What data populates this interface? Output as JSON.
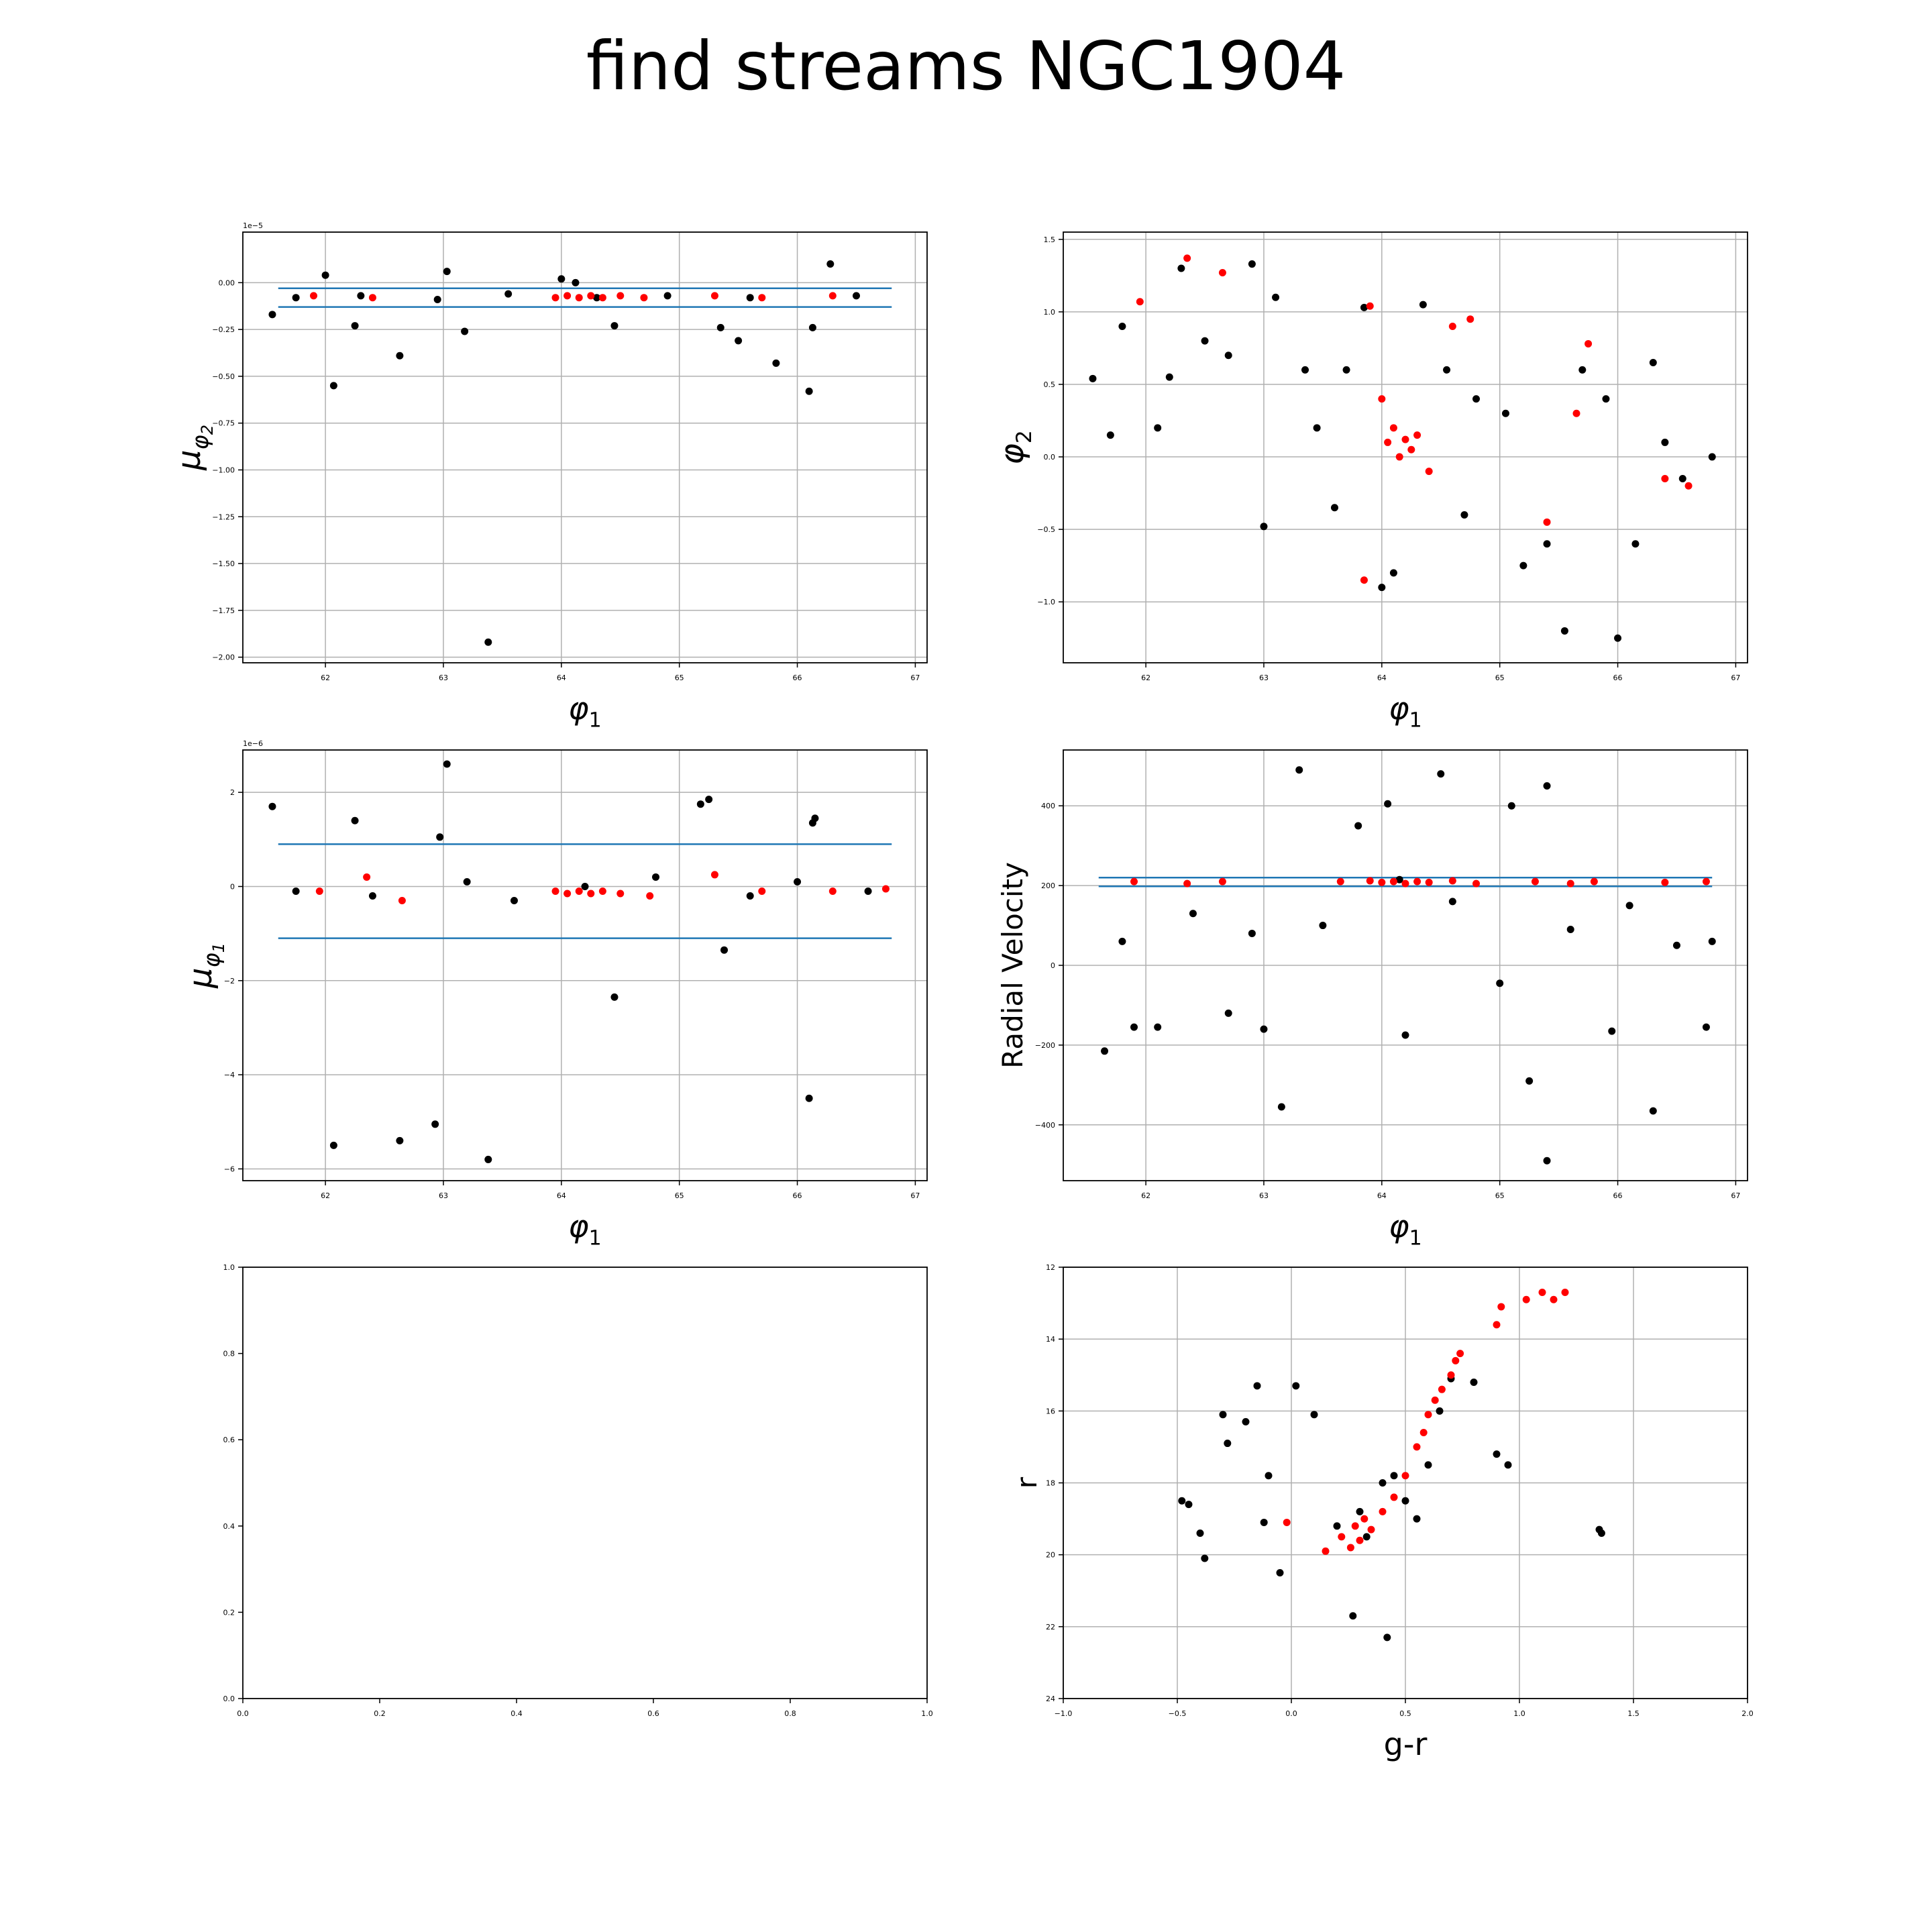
{
  "figure": {
    "title": "find streams NGC1904"
  },
  "colors": {
    "member": "#ff0000",
    "field": "#000000",
    "cut_line": "#1f77b4",
    "grid": "#b0b0b0"
  },
  "chart_data": [
    {
      "id": "pm2",
      "type": "scatter",
      "title": "",
      "xlabel": "φ1",
      "ylabel": "μφ2",
      "offset_text": "1e−5",
      "xlim": [
        61.3,
        67.1
      ],
      "ylim": [
        -2.03,
        0.27
      ],
      "xticks": [
        62,
        63,
        64,
        65,
        66,
        67
      ],
      "xtick_labels": [
        "62",
        "63",
        "64",
        "65",
        "66",
        "67"
      ],
      "yticks": [
        0.0,
        -0.25,
        -0.5,
        -0.75,
        -1.0,
        -1.25,
        -1.5,
        -1.75,
        -2.0
      ],
      "ytick_labels": [
        "0.00",
        "−0.25",
        "−0.50",
        "−0.75",
        "−1.00",
        "−1.25",
        "−1.50",
        "−1.75",
        "−2.00"
      ],
      "grid": true,
      "hlines": [
        -0.03,
        -0.13
      ],
      "hline_range": [
        61.6,
        66.8
      ],
      "series": [
        {
          "role": "field",
          "x": [
            61.55,
            62.0,
            62.07,
            62.25,
            62.63,
            63.03,
            63.18,
            63.38,
            64.0,
            64.12,
            64.45,
            65.35,
            65.5,
            65.82,
            66.1,
            66.13,
            66.28,
            61.75,
            62.3,
            62.95,
            63.55,
            64.3,
            64.9,
            65.6,
            66.5
          ],
          "y": [
            -0.17,
            0.04,
            -0.55,
            -0.23,
            -0.39,
            0.06,
            -0.26,
            -1.92,
            0.02,
            0.0,
            -0.23,
            -0.24,
            -0.31,
            -0.43,
            -0.58,
            -0.24,
            0.1,
            -0.08,
            -0.07,
            -0.09,
            -0.06,
            -0.08,
            -0.07,
            -0.08,
            -0.07
          ]
        },
        {
          "role": "member",
          "x": [
            61.9,
            62.4,
            63.95,
            64.05,
            64.15,
            64.25,
            64.35,
            64.5,
            64.7,
            65.3,
            65.7,
            66.3
          ],
          "y": [
            -0.07,
            -0.08,
            -0.08,
            -0.07,
            -0.08,
            -0.07,
            -0.08,
            -0.07,
            -0.08,
            -0.07,
            -0.08,
            -0.07
          ]
        }
      ]
    },
    {
      "id": "sky",
      "type": "scatter",
      "title": "",
      "xlabel": "φ1",
      "ylabel": "φ2",
      "xlim": [
        61.3,
        67.1
      ],
      "ylim": [
        -1.42,
        1.55
      ],
      "xticks": [
        62,
        63,
        64,
        65,
        66,
        67
      ],
      "xtick_labels": [
        "62",
        "63",
        "64",
        "65",
        "66",
        "67"
      ],
      "yticks": [
        1.5,
        1.0,
        0.5,
        0.0,
        -0.5,
        -1.0
      ],
      "ytick_labels": [
        "1.5",
        "1.0",
        "0.5",
        "0.0",
        "−0.5",
        "−1.0"
      ],
      "grid": true,
      "hlines": [],
      "series": [
        {
          "role": "field",
          "x": [
            61.55,
            61.8,
            62.1,
            62.3,
            62.5,
            62.9,
            63.0,
            63.35,
            63.6,
            63.7,
            63.85,
            64.0,
            64.35,
            64.55,
            64.8,
            65.05,
            65.4,
            65.7,
            66.0,
            66.3,
            66.55,
            66.8,
            62.2,
            62.7,
            63.1,
            64.1,
            65.2,
            65.9,
            66.4,
            61.7,
            63.45,
            64.7,
            65.55,
            66.15
          ],
          "y": [
            0.54,
            0.9,
            0.2,
            1.3,
            0.8,
            1.33,
            -0.48,
            0.6,
            -0.35,
            0.6,
            1.03,
            -0.9,
            1.05,
            0.6,
            0.4,
            0.3,
            -0.6,
            0.6,
            -1.25,
            0.65,
            -0.15,
            0.0,
            0.55,
            0.7,
            1.1,
            -0.8,
            -0.75,
            0.4,
            0.1,
            0.15,
            0.2,
            -0.4,
            -1.2,
            -0.6
          ]
        },
        {
          "role": "member",
          "x": [
            61.95,
            62.35,
            62.65,
            63.9,
            64.05,
            64.1,
            64.15,
            64.2,
            64.25,
            64.3,
            64.4,
            64.6,
            64.75,
            65.4,
            65.75,
            65.65,
            66.4,
            66.6,
            63.85,
            64.0
          ],
          "y": [
            1.07,
            1.37,
            1.27,
            1.04,
            0.1,
            0.2,
            0.0,
            0.12,
            0.05,
            0.15,
            -0.1,
            0.9,
            0.95,
            -0.45,
            0.78,
            0.3,
            -0.15,
            -0.2,
            -0.85,
            0.4
          ]
        }
      ]
    },
    {
      "id": "pm1",
      "type": "scatter",
      "title": "",
      "xlabel": "φ1",
      "ylabel": "μφ1",
      "offset_text": "1e−6",
      "xlim": [
        61.3,
        67.1
      ],
      "ylim": [
        -6.25,
        2.9
      ],
      "xticks": [
        62,
        63,
        64,
        65,
        66,
        67
      ],
      "xtick_labels": [
        "62",
        "63",
        "64",
        "65",
        "66",
        "67"
      ],
      "yticks": [
        2,
        0,
        -2,
        -4,
        -6
      ],
      "ytick_labels": [
        "2",
        "0",
        "−2",
        "−4",
        "−6"
      ],
      "grid": true,
      "hlines": [
        0.9,
        -1.1
      ],
      "hline_range": [
        61.6,
        66.8
      ],
      "series": [
        {
          "role": "field",
          "x": [
            61.55,
            62.07,
            62.25,
            62.63,
            62.93,
            62.97,
            63.03,
            63.38,
            64.45,
            65.18,
            65.25,
            65.38,
            66.1,
            66.13,
            66.15,
            61.75,
            62.4,
            63.2,
            63.6,
            64.2,
            64.8,
            65.6,
            66.0,
            66.6
          ],
          "y": [
            1.7,
            -5.5,
            1.4,
            -5.4,
            -5.05,
            1.05,
            2.6,
            -5.8,
            -2.35,
            1.75,
            1.85,
            -1.35,
            -4.5,
            1.35,
            1.45,
            -0.1,
            -0.2,
            0.1,
            -0.3,
            0.0,
            0.2,
            -0.2,
            0.1,
            -0.1
          ]
        },
        {
          "role": "member",
          "x": [
            61.95,
            62.35,
            62.65,
            63.95,
            64.05,
            64.15,
            64.25,
            64.35,
            64.5,
            64.75,
            65.3,
            65.7,
            66.3,
            66.75
          ],
          "y": [
            -0.1,
            0.2,
            -0.3,
            -0.1,
            -0.15,
            -0.1,
            -0.15,
            -0.1,
            -0.15,
            -0.2,
            0.25,
            -0.1,
            -0.1,
            -0.05
          ]
        }
      ]
    },
    {
      "id": "rv",
      "type": "scatter",
      "title": "",
      "xlabel": "φ1",
      "ylabel": "Radial Velocity",
      "xlim": [
        61.3,
        67.1
      ],
      "ylim": [
        -540,
        540
      ],
      "xticks": [
        62,
        63,
        64,
        65,
        66,
        67
      ],
      "xtick_labels": [
        "62",
        "63",
        "64",
        "65",
        "66",
        "67"
      ],
      "yticks": [
        400,
        200,
        0,
        -200,
        -400
      ],
      "ytick_labels": [
        "400",
        "200",
        "0",
        "−200",
        "−400"
      ],
      "grid": true,
      "hlines": [
        220,
        198
      ],
      "hline_range": [
        61.6,
        66.8
      ],
      "series": [
        {
          "role": "field",
          "x": [
            61.65,
            61.9,
            62.1,
            62.7,
            63.0,
            63.15,
            63.3,
            64.05,
            64.15,
            64.2,
            64.5,
            65.0,
            65.1,
            65.25,
            65.4,
            65.4,
            65.95,
            66.3,
            66.75,
            66.8,
            61.8,
            62.4,
            62.9,
            63.5,
            63.8,
            64.6,
            65.6,
            66.1,
            66.5
          ],
          "y": [
            -215,
            -155,
            -155,
            -120,
            -160,
            -355,
            490,
            405,
            215,
            -175,
            480,
            -45,
            400,
            -290,
            450,
            -490,
            -165,
            -365,
            -155,
            60,
            60,
            130,
            80,
            100,
            350,
            160,
            90,
            150,
            50
          ]
        },
        {
          "role": "member",
          "x": [
            61.9,
            62.35,
            62.65,
            63.65,
            63.9,
            64.0,
            64.1,
            64.2,
            64.3,
            64.4,
            64.6,
            64.8,
            65.3,
            65.6,
            65.8,
            66.4,
            66.75
          ],
          "y": [
            210,
            205,
            210,
            210,
            212,
            208,
            210,
            205,
            210,
            208,
            212,
            205,
            210,
            205,
            210,
            208,
            210
          ]
        }
      ]
    },
    {
      "id": "empty",
      "type": "scatter",
      "title": "",
      "xlabel": "",
      "ylabel": "",
      "xlim": [
        0.0,
        1.0
      ],
      "ylim": [
        0.0,
        1.0
      ],
      "xticks": [
        0.0,
        0.2,
        0.4,
        0.6,
        0.8,
        1.0
      ],
      "xtick_labels": [
        "0.0",
        "0.2",
        "0.4",
        "0.6",
        "0.8",
        "1.0"
      ],
      "yticks": [
        0.0,
        0.2,
        0.4,
        0.6,
        0.8,
        1.0
      ],
      "ytick_labels": [
        "0.0",
        "0.2",
        "0.4",
        "0.6",
        "0.8",
        "1.0"
      ],
      "grid": false,
      "hlines": [],
      "series": []
    },
    {
      "id": "cmd",
      "type": "scatter",
      "title": "",
      "xlabel": "g-r",
      "ylabel": "r",
      "xlim": [
        -1.0,
        2.0
      ],
      "ylim": [
        24,
        12
      ],
      "xticks": [
        -1.0,
        -0.5,
        0.0,
        0.5,
        1.0,
        1.5,
        2.0
      ],
      "xtick_labels": [
        "−1.0",
        "−0.5",
        "0.0",
        "0.5",
        "1.0",
        "1.5",
        "2.0"
      ],
      "yticks": [
        12,
        14,
        16,
        18,
        20,
        22,
        24
      ],
      "ytick_labels": [
        "12",
        "14",
        "16",
        "18",
        "20",
        "22",
        "24"
      ],
      "grid": true,
      "hlines": [],
      "series": [
        {
          "role": "field",
          "x": [
            -0.48,
            -0.45,
            -0.4,
            -0.38,
            -0.3,
            -0.28,
            -0.2,
            -0.15,
            -0.12,
            -0.1,
            -0.05,
            0.02,
            0.1,
            0.2,
            0.27,
            0.33,
            0.42,
            0.5,
            0.55,
            0.6,
            0.65,
            0.7,
            0.8,
            0.9,
            0.95,
            1.35,
            1.36,
            0.3,
            0.4,
            0.45
          ],
          "y": [
            18.5,
            18.6,
            19.4,
            20.1,
            16.1,
            16.9,
            16.3,
            15.3,
            19.1,
            17.8,
            20.5,
            15.3,
            16.1,
            19.2,
            21.7,
            19.5,
            22.3,
            18.5,
            19.0,
            17.5,
            16.0,
            15.1,
            15.2,
            17.2,
            17.5,
            19.3,
            19.4,
            18.8,
            18.0,
            17.8
          ]
        },
        {
          "role": "member",
          "x": [
            -0.02,
            0.15,
            0.22,
            0.26,
            0.28,
            0.3,
            0.32,
            0.35,
            0.4,
            0.45,
            0.5,
            0.55,
            0.58,
            0.6,
            0.63,
            0.66,
            0.7,
            0.72,
            0.74,
            0.9,
            0.92,
            1.03,
            1.1,
            1.15,
            1.2
          ],
          "y": [
            19.1,
            19.9,
            19.5,
            19.8,
            19.2,
            19.6,
            19.0,
            19.3,
            18.8,
            18.4,
            17.8,
            17.0,
            16.6,
            16.1,
            15.7,
            15.4,
            15.0,
            14.6,
            14.4,
            13.6,
            13.1,
            12.9,
            12.7,
            12.9,
            12.7
          ]
        }
      ]
    }
  ]
}
